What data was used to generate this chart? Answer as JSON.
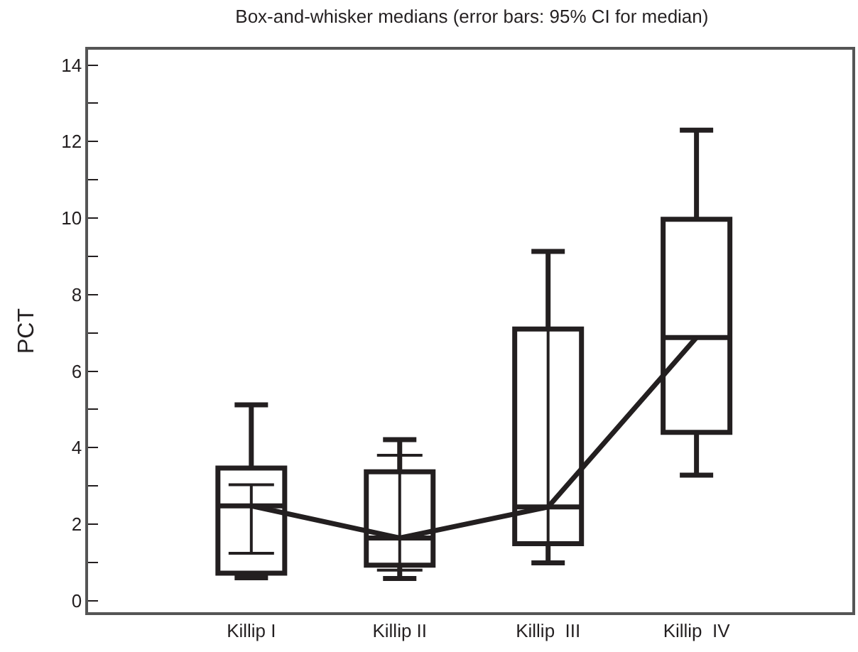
{
  "chart_data": {
    "type": "box",
    "title": "Box-and-whisker medians (error bars: 95% CI for median)",
    "ylabel": "PCT",
    "categories": [
      "Killip I",
      "Killip II",
      "Killip  III",
      "Killip  IV"
    ],
    "series": [
      {
        "color": "#231f20",
        "boxes": [
          {
            "low": 0.6,
            "q1": 0.72,
            "median": 2.48,
            "q3": 3.47,
            "high": 5.12
          },
          {
            "low": 0.58,
            "q1": 0.93,
            "median": 1.64,
            "q3": 3.37,
            "high": 4.21
          },
          {
            "low": 0.99,
            "q1": 1.49,
            "median": 2.45,
            "q3": 7.1,
            "high": 9.13
          },
          {
            "low": 3.28,
            "q1": 4.4,
            "median": 6.88,
            "q3": 9.97,
            "high": 12.3
          }
        ]
      },
      {
        "type": "line",
        "color": "#231f20",
        "values": [
          2.48,
          1.64,
          2.45,
          6.88
        ],
        "errors": [
          [
            1.24,
            3.03
          ],
          [
            0.8,
            3.8
          ],
          [
            1.49,
            7.1
          ],
          null
        ]
      }
    ],
    "ylim": [
      -0.3,
      14.4
    ],
    "yticks": [
      0,
      {
        "value": 1,
        "label": null
      },
      2,
      {
        "value": 3,
        "label": null
      },
      4,
      {
        "value": 5,
        "label": null
      },
      6,
      {
        "value": 7,
        "label": null
      },
      8,
      {
        "value": 9,
        "label": null
      },
      10,
      {
        "value": 11,
        "label": null
      },
      12,
      {
        "value": 13,
        "label": null
      },
      14
    ],
    "marker": "none"
  }
}
